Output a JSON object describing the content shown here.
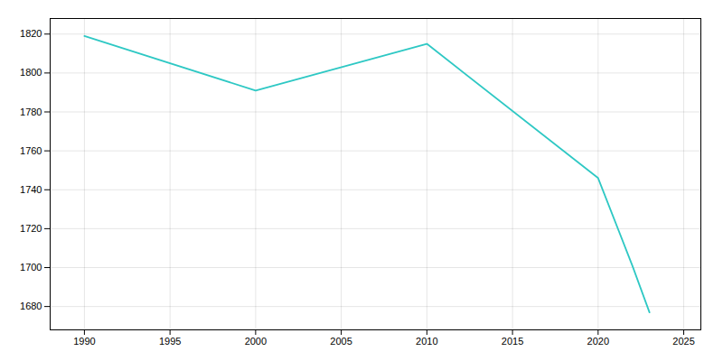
{
  "chart_data": {
    "type": "line",
    "x": [
      1990,
      2000,
      2010,
      2020,
      2022,
      2023
    ],
    "values": [
      1819,
      1791,
      1815,
      1746,
      1701,
      1677
    ],
    "color": "#2ec8c4",
    "xlim": [
      1988,
      2026
    ],
    "ylim": [
      1668,
      1828
    ],
    "xticks": [
      1990,
      1995,
      2000,
      2005,
      2010,
      2015,
      2020,
      2025
    ],
    "yticks": [
      1680,
      1700,
      1720,
      1740,
      1760,
      1780,
      1800,
      1820
    ],
    "grid": true
  }
}
